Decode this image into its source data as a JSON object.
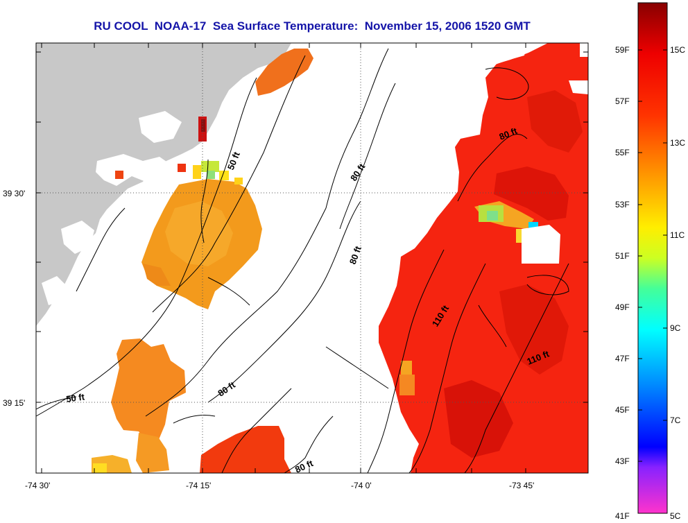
{
  "title": "RU COOL  NOAA-17  Sea Surface Temperature:  November 15, 2006 1520 GMT",
  "map": {
    "lon_ticks": [
      "-74 30'",
      "-74 15'",
      "-74 0'",
      "-73 45'"
    ],
    "lat_ticks": [
      "39 30'",
      "39 15'"
    ],
    "contour_labels": [
      "50 ft",
      "80 ft",
      "80 ft",
      "80 ft",
      "110 ft",
      "110 ft",
      "50 ft",
      "80 ft",
      "80 ft"
    ]
  },
  "colorbar": {
    "fahrenheit": [
      "59F",
      "57F",
      "55F",
      "53F",
      "51F",
      "49F",
      "47F",
      "45F",
      "43F",
      "41F"
    ],
    "celsius": [
      "15C",
      "13C",
      "11C",
      "9C",
      "7C",
      "5C"
    ],
    "colors": [
      "#ff33cc",
      "#8822ff",
      "#0000ff",
      "#0088ff",
      "#00ffff",
      "#44ff99",
      "#ccff22",
      "#ffee00",
      "#ff9900",
      "#ff3300",
      "#ee0000",
      "#880000"
    ]
  }
}
